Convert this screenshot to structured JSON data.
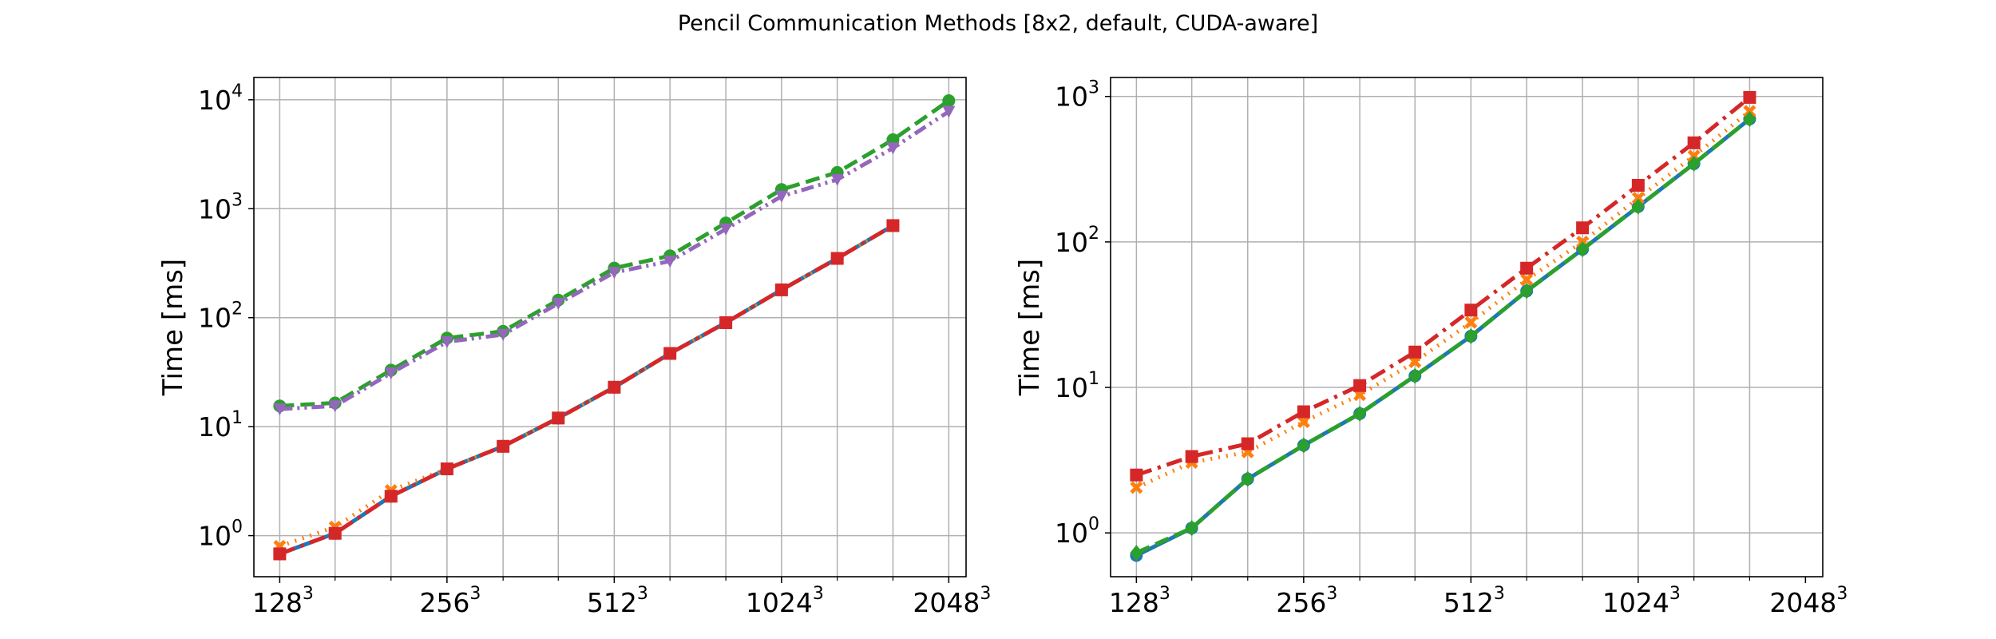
{
  "page": {
    "title": "Pencil Communication Methods [8x2, default, CUDA-aware]"
  },
  "chart_data": [
    {
      "type": "line",
      "ylabel": "Time [ms]",
      "xlabel": "",
      "x_ticks": [
        {
          "base": "128",
          "exp": "3",
          "value": 128
        },
        {
          "base": "256",
          "exp": "3",
          "value": 256
        },
        {
          "base": "512",
          "exp": "3",
          "value": 512
        },
        {
          "base": "1024",
          "exp": "3",
          "value": 1024
        },
        {
          "base": "2048",
          "exp": "3",
          "value": 2048
        }
      ],
      "y_ticks": [
        {
          "base": "10",
          "exp": "0",
          "value": 1
        },
        {
          "base": "10",
          "exp": "1",
          "value": 10
        },
        {
          "base": "10",
          "exp": "2",
          "value": 100
        },
        {
          "base": "10",
          "exp": "3",
          "value": 1000
        },
        {
          "base": "10",
          "exp": "4",
          "value": 10000
        }
      ],
      "y_scale": "log",
      "x_scale": "log",
      "ylim": [
        0.42,
        16000
      ],
      "xlim": [
        115,
        2200
      ],
      "grid": true,
      "x": [
        128,
        161,
        203,
        256,
        323,
        406,
        512,
        645,
        813,
        1024,
        1290,
        1625,
        2048
      ],
      "series": [
        {
          "color": "#1f77b4",
          "marker": "circle",
          "dash": "solid",
          "values": [
            0.68,
            1.05,
            2.3,
            4.1,
            6.6,
            12,
            23,
            47,
            90,
            180,
            350,
            700,
            null
          ]
        },
        {
          "color": "#ff7f0e",
          "marker": "x",
          "dash": "dotted",
          "values": [
            0.8,
            1.2,
            2.6,
            4.1,
            6.6,
            12,
            23,
            47,
            90,
            180,
            350,
            700,
            null
          ]
        },
        {
          "color": "#2ca02c",
          "marker": "circle",
          "dash": "dashed",
          "values": [
            15.5,
            16.5,
            33,
            65,
            75,
            145,
            285,
            370,
            740,
            1500,
            2150,
            4300,
            9800
          ]
        },
        {
          "color": "#d62728",
          "marker": "square",
          "dash": "dashdot",
          "values": [
            0.68,
            1.05,
            2.3,
            4.1,
            6.6,
            12,
            23,
            47,
            90,
            180,
            350,
            700,
            null
          ]
        },
        {
          "color": "#9467bd",
          "marker": "triangle-down",
          "dash": "dashdotdot",
          "values": [
            14.5,
            15.5,
            31,
            60,
            70,
            135,
            260,
            330,
            650,
            1300,
            1850,
            3600,
            7800
          ]
        }
      ]
    },
    {
      "type": "line",
      "ylabel": "Time [ms]",
      "xlabel": "",
      "x_ticks": [
        {
          "base": "128",
          "exp": "3",
          "value": 128
        },
        {
          "base": "256",
          "exp": "3",
          "value": 256
        },
        {
          "base": "512",
          "exp": "3",
          "value": 512
        },
        {
          "base": "1024",
          "exp": "3",
          "value": 1024
        },
        {
          "base": "2048",
          "exp": "3",
          "value": 2048
        }
      ],
      "y_ticks": [
        {
          "base": "10",
          "exp": "0",
          "value": 1
        },
        {
          "base": "10",
          "exp": "1",
          "value": 10
        },
        {
          "base": "10",
          "exp": "2",
          "value": 100
        },
        {
          "base": "10",
          "exp": "3",
          "value": 1000
        }
      ],
      "y_scale": "log",
      "x_scale": "log",
      "ylim": [
        0.5,
        1350
      ],
      "xlim": [
        115,
        2200
      ],
      "grid": true,
      "x": [
        128,
        161,
        203,
        256,
        323,
        406,
        512,
        645,
        813,
        1024,
        1290,
        1625
      ],
      "series": [
        {
          "color": "#1f77b4",
          "marker": "circle",
          "dash": "solid",
          "values": [
            0.7,
            1.08,
            2.35,
            4.0,
            6.6,
            12,
            22.5,
            46,
            89,
            175,
            345,
            700
          ]
        },
        {
          "color": "#ff7f0e",
          "marker": "x",
          "dash": "dotted",
          "values": [
            2.05,
            3.05,
            3.6,
            5.8,
            8.9,
            15,
            28,
            55,
            100,
            200,
            390,
            790
          ]
        },
        {
          "color": "#2ca02c",
          "marker": "diamond",
          "dash": "dashed",
          "values": [
            0.73,
            1.08,
            2.35,
            4.0,
            6.6,
            12,
            22.5,
            46,
            89,
            175,
            345,
            700
          ]
        },
        {
          "color": "#d62728",
          "marker": "square",
          "dash": "dashdot",
          "values": [
            2.5,
            3.35,
            4.1,
            6.8,
            10.3,
            17.5,
            34,
            66,
            125,
            245,
            480,
            985
          ]
        }
      ]
    }
  ]
}
